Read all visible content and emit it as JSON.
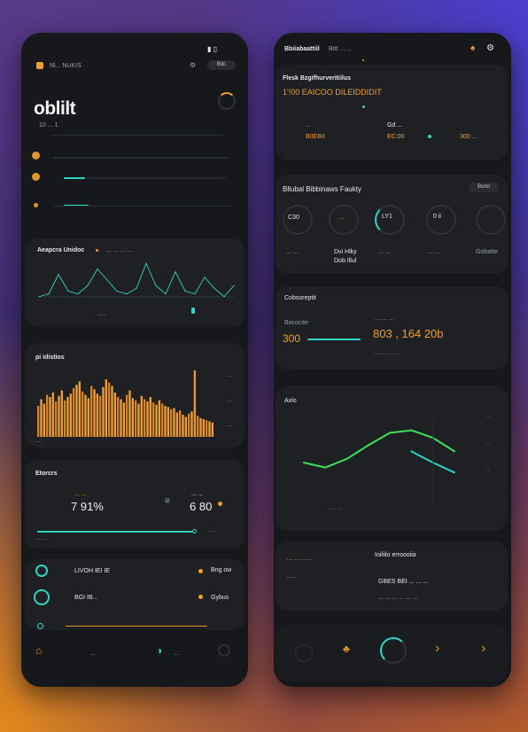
{
  "colors": {
    "accent_orange": "#f0a030",
    "accent_teal": "#2fd6c8",
    "accent_green": "#3ee05a",
    "card_bg": "#1e2024",
    "phone_bg": "#17181b"
  },
  "left": {
    "header": {
      "brand": "Nl... NUKIS",
      "action": "Bdc"
    },
    "hero": {
      "value": "oblilt",
      "subtitle": "10 ... 1"
    },
    "audience": {
      "title": "Aeapcra Unidoc",
      "legend": "... ... ... ...",
      "x_label": "....."
    },
    "bars": {
      "title": "pi idistios",
      "x_label": "....."
    },
    "metrics": {
      "title": "Etorcrs",
      "m1_label": "... ...",
      "m1_value": "7 91%",
      "m2_label": "... ...",
      "m2_value": "6 80",
      "footer": "..... ...",
      "footer_right": "... ..."
    },
    "list": {
      "item1_label": "LIVOH IEI IE",
      "item1_right": "Bng ow",
      "item2_label": "BGI IB...",
      "item2_right": "Gybus"
    },
    "nav": {
      "n1": "...",
      "n2": "...",
      "n3": "..."
    }
  },
  "right": {
    "header": {
      "title": "Bbiiabaattiil",
      "sub": "Bttt ... ..."
    },
    "summary": {
      "title": "Flesk Bzgifhurveritiilus",
      "subtitle": "1'!00 EAICOO DILEIDDIDIT",
      "col1_label": "...",
      "col1_value": "BIIEBII",
      "col2_label": "Gd ...",
      "col2_value": "EC:00",
      "col3_value": "300 ..."
    },
    "gauges": {
      "title": "Bllubal Bibbinaws Faukty",
      "action": "Boml",
      "g1_value": "C30",
      "g1_label": "... ...",
      "g2_value": "...",
      "g2_label": "Dvi Hlky",
      "g2_label2": "Dob Illul",
      "g3_value": "LY1",
      "g3_label": "... ...",
      "g4_value": "0 ii",
      "g4_label": "... ...",
      "g5_label": "Gobatte"
    },
    "comparison": {
      "title": "Cobsoreptit",
      "left_label": "Bococite",
      "left_value": "300",
      "right_label": "... ... ...",
      "right_value": "803 , 164 20b",
      "footer": "... ... ... ..."
    },
    "line_chart": {
      "title": "Axlo",
      "x_label": "... ... ..."
    },
    "details": {
      "title": "Ioiliilo erroooiia",
      "line1": "GBES BEI ... ... ...",
      "line2": "... ... ... ... ... ..."
    }
  },
  "chart_data": [
    {
      "type": "line",
      "title": "Aeapcra Unidoc",
      "x": [
        0,
        1,
        2,
        3,
        4,
        5,
        6,
        7,
        8,
        9,
        10,
        11,
        12,
        13,
        14,
        15,
        16,
        17,
        18,
        19,
        20
      ],
      "series": [
        {
          "values": [
            2,
            3,
            10,
            4,
            3,
            6,
            12,
            8,
            4,
            3,
            5,
            14,
            6,
            3,
            11,
            4,
            3,
            9,
            5,
            2,
            6
          ]
        }
      ],
      "ylim": [
        0,
        16
      ]
    },
    {
      "type": "bar",
      "title": "pi idistios",
      "values": [
        28,
        34,
        30,
        38,
        36,
        40,
        32,
        37,
        42,
        33,
        36,
        39,
        44,
        47,
        50,
        41,
        38,
        35,
        46,
        43,
        39,
        37,
        45,
        52,
        49,
        46,
        40,
        36,
        34,
        31,
        38,
        42,
        35,
        33,
        30,
        37,
        34,
        32,
        36,
        31,
        29,
        33,
        30,
        28,
        27,
        25,
        26,
        22,
        24,
        20,
        18,
        21,
        23,
        60,
        19,
        17,
        16,
        15,
        14,
        13
      ],
      "ylim": [
        0,
        64
      ]
    },
    {
      "type": "line",
      "title": "Axlo",
      "x": [
        0,
        1,
        2,
        3,
        4,
        5,
        6,
        7
      ],
      "series": [
        {
          "values": [
            30,
            22,
            36,
            58,
            78,
            82,
            70,
            48
          ]
        },
        {
          "values": [
            null,
            null,
            null,
            null,
            null,
            48,
            30,
            14
          ]
        }
      ],
      "ylim": [
        0,
        100
      ]
    }
  ]
}
